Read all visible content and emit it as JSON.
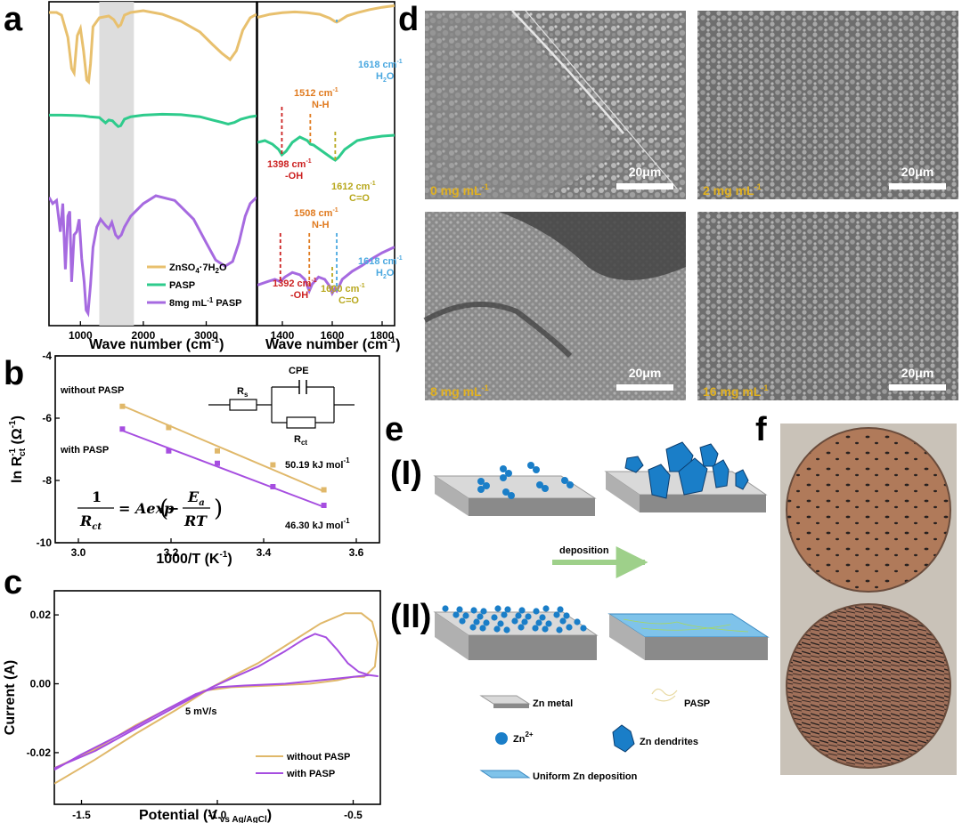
{
  "panel_labels": {
    "a": "a",
    "b": "b",
    "c": "c",
    "d": "d",
    "e": "e",
    "f": "f"
  },
  "colors": {
    "znso4": "#e8c06e",
    "pasp": "#2ecb8c",
    "pasp8": "#a66ae0",
    "without": "#e0b86a",
    "with": "#a64ee0",
    "blue": "#4aa8e0",
    "red": "#cc2222",
    "orange": "#e07a1e",
    "olive": "#b8a81e",
    "sem_text": "#e0b020"
  },
  "chart_data": [
    {
      "id": "a_left",
      "type": "line",
      "xlabel_main": "Wave number (cm",
      "xlabel_sup": "-1",
      "xlabel_end": ")",
      "xticks": [
        "1000",
        "2000",
        "3000"
      ],
      "xlim": [
        500,
        3800
      ],
      "highlight_band": [
        1300,
        1850
      ],
      "series": [
        {
          "name": "ZnSO",
          "name_sub1": "4",
          "name_mid": "·7H",
          "name_sub2": "2",
          "name_end": "O",
          "color": "#e8c06e",
          "x": [
            500,
            620,
            700,
            800,
            860,
            900,
            950,
            1000,
            1050,
            1100,
            1130,
            1160,
            1200,
            1300,
            1450,
            1530,
            1600,
            1640,
            1700,
            1800,
            2000,
            2300,
            2600,
            2900,
            3100,
            3250,
            3380,
            3480,
            3580,
            3700,
            3800
          ],
          "y": [
            0.88,
            0.88,
            0.85,
            0.6,
            0.25,
            0.2,
            0.62,
            0.7,
            0.45,
            0.12,
            0.1,
            0.3,
            0.72,
            0.82,
            0.84,
            0.8,
            0.72,
            0.74,
            0.85,
            0.88,
            0.9,
            0.86,
            0.78,
            0.66,
            0.52,
            0.42,
            0.35,
            0.45,
            0.68,
            0.82,
            0.86
          ]
        },
        {
          "name": "PASP",
          "color": "#2ecb8c",
          "x": [
            500,
            700,
            900,
            1050,
            1150,
            1300,
            1400,
            1450,
            1510,
            1560,
            1600,
            1640,
            1700,
            1800,
            2000,
            2300,
            2600,
            2900,
            3100,
            3250,
            3350,
            3450,
            3550,
            3700,
            3800
          ],
          "y": [
            0.84,
            0.84,
            0.83,
            0.82,
            0.8,
            0.78,
            0.65,
            0.72,
            0.7,
            0.62,
            0.56,
            0.58,
            0.74,
            0.8,
            0.84,
            0.86,
            0.85,
            0.8,
            0.72,
            0.66,
            0.62,
            0.66,
            0.74,
            0.8,
            0.82
          ]
        },
        {
          "name": "8mg mL",
          "name_sup": "-1",
          "name_end": " PASP",
          "color": "#a66ae0",
          "x": [
            500,
            560,
            620,
            680,
            720,
            760,
            800,
            830,
            860,
            900,
            940,
            980,
            1020,
            1060,
            1090,
            1120,
            1160,
            1200,
            1260,
            1320,
            1400,
            1450,
            1500,
            1560,
            1600,
            1650,
            1700,
            1800,
            2000,
            2200,
            2500,
            2800,
            3000,
            3150,
            3300,
            3420,
            3520,
            3620,
            3700,
            3800
          ],
          "y": [
            0.74,
            0.7,
            0.72,
            0.52,
            0.7,
            0.28,
            0.62,
            0.65,
            0.2,
            0.5,
            0.52,
            0.6,
            0.35,
            0.2,
            0.02,
            0.0,
            0.18,
            0.42,
            0.55,
            0.6,
            0.56,
            0.54,
            0.58,
            0.5,
            0.48,
            0.5,
            0.55,
            0.62,
            0.7,
            0.75,
            0.72,
            0.6,
            0.45,
            0.34,
            0.3,
            0.33,
            0.45,
            0.62,
            0.7,
            0.74
          ]
        }
      ]
    },
    {
      "id": "a_right",
      "type": "line",
      "xlabel_main": "Wave number (cm",
      "xlabel_sup": "-1",
      "xlabel_end": ")",
      "xticks": [
        "1400",
        "1600",
        "1800"
      ],
      "xlim": [
        1300,
        1850
      ],
      "series": [
        {
          "name": "ZnSO4·7H2O",
          "color": "#e8c06e",
          "x": [
            1300,
            1350,
            1400,
            1450,
            1500,
            1550,
            1590,
            1610,
            1618,
            1630,
            1660,
            1700,
            1750,
            1800,
            1850
          ],
          "y": [
            0.8,
            0.84,
            0.86,
            0.87,
            0.86,
            0.84,
            0.79,
            0.75,
            0.74,
            0.76,
            0.82,
            0.86,
            0.9,
            0.93,
            0.95
          ]
        },
        {
          "name": "PASP",
          "color": "#2ecb8c",
          "x": [
            1300,
            1330,
            1360,
            1385,
            1398,
            1415,
            1440,
            1470,
            1500,
            1512,
            1525,
            1550,
            1580,
            1600,
            1612,
            1625,
            1650,
            1700,
            1750,
            1800,
            1850
          ],
          "y": [
            0.5,
            0.52,
            0.48,
            0.42,
            0.36,
            0.4,
            0.5,
            0.56,
            0.52,
            0.48,
            0.47,
            0.42,
            0.36,
            0.32,
            0.3,
            0.33,
            0.42,
            0.52,
            0.55,
            0.57,
            0.58
          ]
        },
        {
          "name": "8mg mL-1 PASP",
          "color": "#a66ae0",
          "x": [
            1300,
            1340,
            1370,
            1392,
            1410,
            1440,
            1470,
            1490,
            1508,
            1520,
            1545,
            1570,
            1590,
            1600,
            1610,
            1618,
            1625,
            1640,
            1680,
            1720,
            1760,
            1800,
            1850
          ],
          "y": [
            0.15,
            0.18,
            0.2,
            0.18,
            0.22,
            0.26,
            0.24,
            0.2,
            0.1,
            0.16,
            0.22,
            0.2,
            0.14,
            0.08,
            0.12,
            0.1,
            0.13,
            0.2,
            0.27,
            0.32,
            0.38,
            0.43,
            0.48
          ]
        }
      ],
      "annotations": [
        {
          "key": "h2o_top",
          "x": 1618,
          "series": 0,
          "label1": "1618 cm",
          "label1_sup": "-1",
          "label2": "H",
          "label2_sub": "2",
          "label2_end": "O",
          "color": "#4aa8e0"
        },
        {
          "key": "nh_pasp",
          "x": 1512,
          "series": 1,
          "label1": "1512 cm",
          "label1_sup": "-1",
          "label2": "N-H",
          "color": "#e07a1e"
        },
        {
          "key": "oh_pasp",
          "x": 1398,
          "series": 1,
          "label1": "1398 cm",
          "label1_sup": "-1",
          "label2": "-OH",
          "color": "#cc2222"
        },
        {
          "key": "co_pasp",
          "x": 1612,
          "series": 1,
          "label1": "1612 cm",
          "label1_sup": "-1",
          "label2": "C=O",
          "color": "#b8a81e"
        },
        {
          "key": "nh_8",
          "x": 1508,
          "series": 2,
          "label1": "1508 cm",
          "label1_sup": "-1",
          "label2": "N-H",
          "color": "#e07a1e"
        },
        {
          "key": "h2o_8",
          "x": 1618,
          "series": 2,
          "label1": "1618 cm",
          "label1_sup": "-1",
          "label2": "H",
          "label2_sub": "2",
          "label2_end": "O",
          "color": "#4aa8e0"
        },
        {
          "key": "oh_8",
          "x": 1392,
          "series": 2,
          "label1": "1392 cm",
          "label1_sup": "-1",
          "label2": "-OH",
          "color": "#cc2222"
        },
        {
          "key": "co_8",
          "x": 1600,
          "series": 2,
          "label1": "1600 cm",
          "label1_sup": "-1",
          "label2": "C=O",
          "color": "#b8a81e"
        }
      ]
    },
    {
      "id": "b",
      "type": "scatter",
      "xlabel": "1000/T (K",
      "xlabel_sup": "-1",
      "xlabel_end": ")",
      "ylabel_pre": "ln R",
      "ylabel_sup": "-1",
      "ylabel_sub": "ct",
      "ylabel_end": " (Ω",
      "ylabel_sup2": "-1",
      "ylabel_end2": ")",
      "xlim": [
        2.95,
        3.65
      ],
      "ylim": [
        -10,
        -4
      ],
      "xticks": [
        3.0,
        3.2,
        3.4,
        3.6
      ],
      "yticks": [
        -4,
        -6,
        -8,
        -10
      ],
      "xtick_labels": [
        "3.0",
        "3.2",
        "3.4",
        "3.6"
      ],
      "ytick_labels": [
        "-4",
        "-6",
        "-8",
        "-10"
      ],
      "series": [
        {
          "name": "without PASP",
          "color": "#e0b86a",
          "x": [
            3.095,
            3.195,
            3.3,
            3.42,
            3.53
          ],
          "y": [
            -5.62,
            -6.3,
            -7.05,
            -7.5,
            -8.3
          ],
          "fit": [
            [
              3.095,
              -5.6
            ],
            [
              3.53,
              -8.35
            ]
          ],
          "energy": "50.19 kJ mol",
          "energy_sup": "-1"
        },
        {
          "name": "with PASP",
          "color": "#a64ee0",
          "x": [
            3.095,
            3.195,
            3.3,
            3.42,
            3.53
          ],
          "y": [
            -6.35,
            -7.05,
            -7.45,
            -8.2,
            -8.8
          ],
          "fit": [
            [
              3.095,
              -6.4
            ],
            [
              3.53,
              -8.85
            ]
          ],
          "energy": "46.30 kJ mol",
          "energy_sup": "-1"
        }
      ],
      "circuit": {
        "rs": "R",
        "rs_sub": "s",
        "cpe": "CPE",
        "rct": "R",
        "rct_sub": "ct"
      },
      "equation": {
        "lhs_num": "1",
        "lhs_den": "R",
        "lhs_den_sub": "ct",
        "eq": "= Aexp",
        "neg": "−",
        "num": "E",
        "num_sub": "a",
        "den": "RT"
      }
    },
    {
      "id": "c",
      "type": "line",
      "xlabel": "Potential (V",
      "xlabel_sub": " vs Ag/AgCl",
      "xlabel_end": ")",
      "ylabel": "Current (A)",
      "xlim": [
        -1.6,
        -0.4
      ],
      "ylim": [
        -0.035,
        0.027
      ],
      "xticks": [
        -1.5,
        -1.0,
        -0.5
      ],
      "yticks": [
        0.02,
        0.0,
        -0.02
      ],
      "xtick_labels": [
        "-1.5",
        "-1.0",
        "-0.5"
      ],
      "ytick_labels": [
        "0.02",
        "0.00",
        "-0.02"
      ],
      "annotation": "5 mV/s",
      "series": [
        {
          "name": "without PASP",
          "color": "#e0b86a",
          "x": [
            -1.6,
            -1.45,
            -1.3,
            -1.15,
            -1.02,
            -0.95,
            -0.85,
            -0.75,
            -0.62,
            -0.53,
            -0.47,
            -0.43,
            -0.41,
            -0.42,
            -0.46,
            -0.5,
            -0.56,
            -0.66,
            -0.8,
            -0.95,
            -1.05,
            -1.15,
            -1.3,
            -1.45,
            -1.6
          ],
          "y": [
            -0.029,
            -0.022,
            -0.0145,
            -0.0075,
            -0.001,
            0.002,
            0.006,
            0.011,
            0.0175,
            0.0205,
            0.0205,
            0.018,
            0.012,
            0.005,
            0.002,
            0.002,
            0.001,
            0.0,
            -0.0005,
            -0.001,
            -0.002,
            -0.006,
            -0.012,
            -0.019,
            -0.0245
          ]
        },
        {
          "name": "with PASP",
          "color": "#a64ee0",
          "x": [
            -1.6,
            -1.45,
            -1.3,
            -1.15,
            -1.02,
            -0.95,
            -0.85,
            -0.75,
            -0.68,
            -0.64,
            -0.6,
            -0.56,
            -0.52,
            -0.48,
            -0.44,
            -0.41,
            -0.44,
            -0.5,
            -0.6,
            -0.75,
            -0.9,
            -1.0,
            -1.08,
            -1.2,
            -1.35,
            -1.5,
            -1.6
          ],
          "y": [
            -0.0245,
            -0.0195,
            -0.013,
            -0.0065,
            -0.001,
            0.0015,
            0.005,
            0.0095,
            0.013,
            0.0145,
            0.0135,
            0.01,
            0.006,
            0.0035,
            0.0025,
            0.0022,
            0.0025,
            0.002,
            0.0012,
            0.0,
            -0.0005,
            -0.001,
            -0.003,
            -0.008,
            -0.0145,
            -0.0205,
            -0.025
          ]
        }
      ]
    }
  ],
  "panel_d": {
    "images": [
      {
        "label": "0 mg mL",
        "sup": "-1",
        "scale": "20μm"
      },
      {
        "label": "2 mg mL",
        "sup": "-1",
        "scale": "20μm"
      },
      {
        "label": "8 mg mL",
        "sup": "-1",
        "scale": "20μm"
      },
      {
        "label": "16 mg mL",
        "sup": "-1",
        "scale": "20μm"
      }
    ]
  },
  "panel_e": {
    "row1": "(I)",
    "row2": "(II)",
    "arrow": "deposition",
    "legend": {
      "zn_metal": "Zn metal",
      "pasp": "PASP",
      "zn2": "Zn",
      "zn2_sup": "2+",
      "dendrites": "Zn dendrites",
      "uniform": "Uniform Zn deposition"
    }
  }
}
